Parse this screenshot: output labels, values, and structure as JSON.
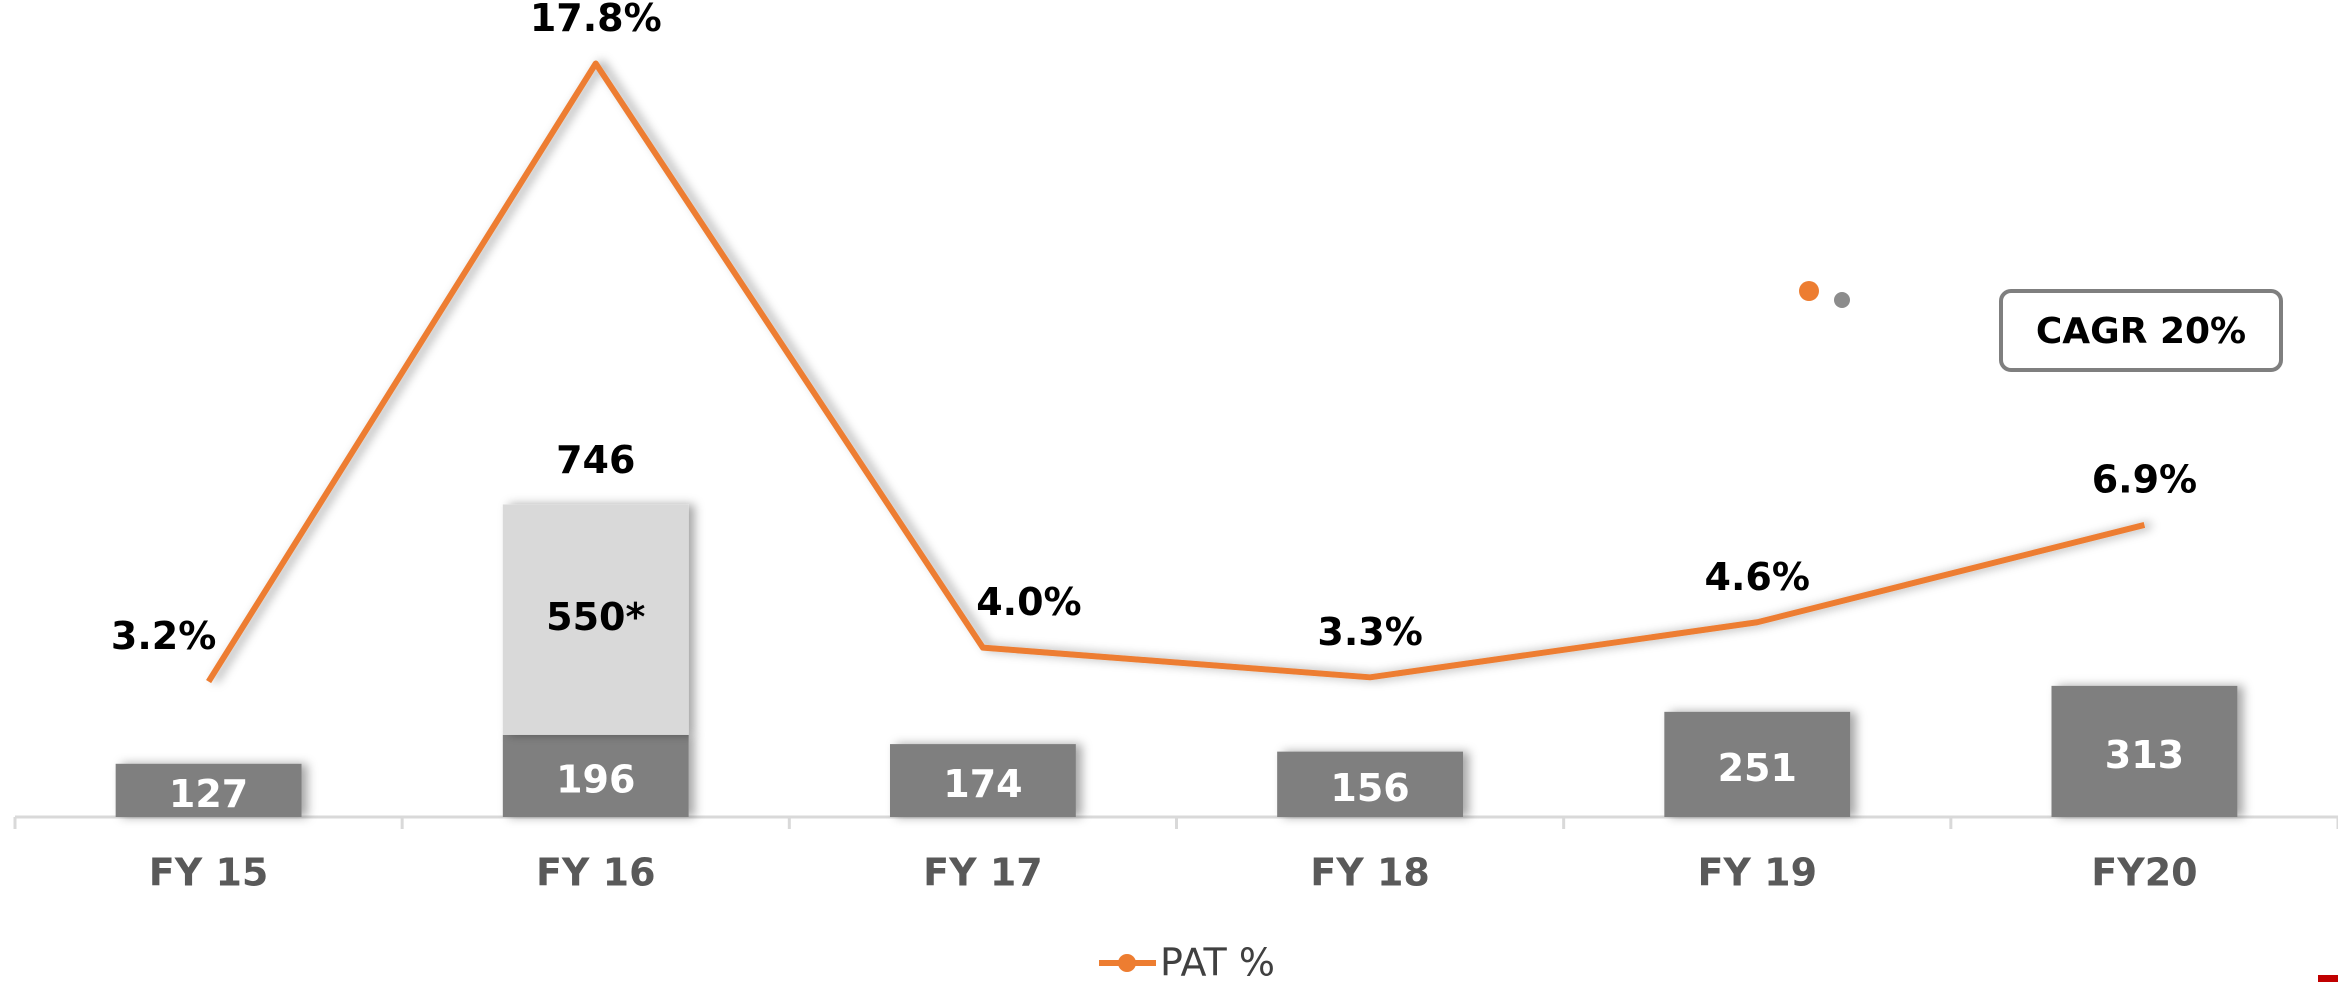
{
  "chart_data": {
    "type": "bar",
    "categories": [
      "FY 15",
      "FY 16",
      "FY 17",
      "FY 18",
      "FY 19",
      "FY20"
    ],
    "series": [
      {
        "color": "#7f7f7f",
        "values": [
          127,
          196,
          174,
          156,
          251,
          313
        ]
      },
      {
        "color": "#d9d9d9",
        "values": [
          null,
          550,
          null,
          null,
          null,
          null
        ],
        "value_labels": [
          null,
          "550*",
          null,
          null,
          null,
          null
        ]
      },
      {
        "name": "PAT %",
        "type": "line",
        "axis": "y2",
        "color": "#ed7d31",
        "values": [
          3.2,
          17.8,
          4.0,
          3.3,
          4.6,
          6.9
        ],
        "value_labels": [
          "3.2%",
          "17.8%",
          "4.0%",
          "3.3%",
          "4.6%",
          "6.9%"
        ]
      }
    ],
    "totals": [
      null,
      746,
      null,
      null,
      null,
      null
    ],
    "ylim": [
      0,
      1950
    ],
    "y2lim": [
      0,
      19.3
    ],
    "annotations": [
      "CAGR 20%"
    ],
    "legend": "bottom"
  }
}
